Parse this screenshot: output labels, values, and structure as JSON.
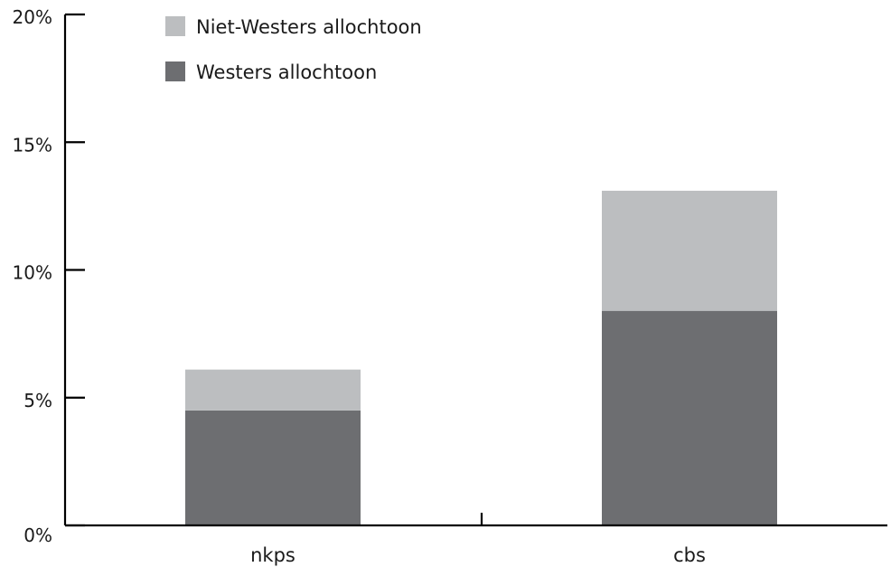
{
  "chart_data": {
    "type": "bar",
    "stacked": true,
    "categories": [
      "nkps",
      "cbs"
    ],
    "series": [
      {
        "name": "Westers allochtoon",
        "values": [
          4.5,
          8.4
        ],
        "color": "#6d6e71"
      },
      {
        "name": "Niet-Westers allochtoon",
        "values": [
          1.6,
          4.7
        ],
        "color": "#bcbec0"
      }
    ],
    "legend_order": [
      "Niet-Westers allochtoon",
      "Westers allochtoon"
    ],
    "legend_position": "top-left",
    "ylim": [
      0,
      20
    ],
    "y_ticks": [
      {
        "value": 0,
        "label": "0%"
      },
      {
        "value": 5,
        "label": "5%"
      },
      {
        "value": 10,
        "label": "10%"
      },
      {
        "value": 15,
        "label": "15%"
      },
      {
        "value": 20,
        "label": "20%"
      }
    ],
    "grid": false,
    "title": "",
    "xlabel": "",
    "ylabel": ""
  }
}
